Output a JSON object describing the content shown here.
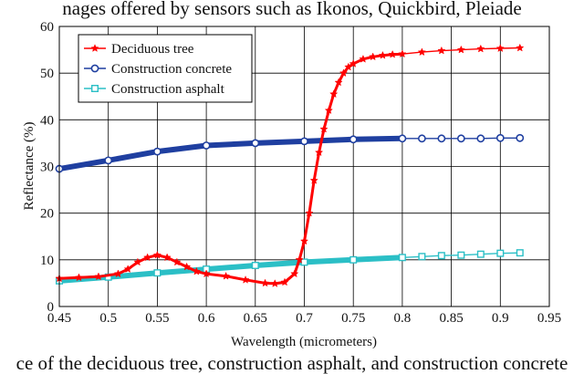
{
  "caption_top": "nages offered by sensors such as Ikonos, Quickbird, Pleiade",
  "caption_bottom": "ce of the deciduous tree, construction asphalt, and construction concrete",
  "chart_data": {
    "type": "line",
    "xlabel": "Wavelength (micrometers)",
    "ylabel": "Reflectance (%)",
    "xlim": [
      0.45,
      0.95
    ],
    "ylim": [
      0,
      60
    ],
    "xticks": [
      "0.45",
      "0.5",
      "0.55",
      "0.6",
      "0.65",
      "0.7",
      "0.75",
      "0.8",
      "0.85",
      "0.9",
      "0.95"
    ],
    "yticks": [
      "0",
      "10",
      "20",
      "30",
      "40",
      "50",
      "60"
    ],
    "grid": true,
    "legend_position": "top-left",
    "series": [
      {
        "name": "Deciduous tree",
        "color": "#ff0000",
        "marker": "star",
        "x": [
          0.45,
          0.47,
          0.49,
          0.51,
          0.52,
          0.53,
          0.54,
          0.55,
          0.56,
          0.57,
          0.58,
          0.59,
          0.6,
          0.62,
          0.64,
          0.66,
          0.67,
          0.68,
          0.69,
          0.695,
          0.7,
          0.705,
          0.71,
          0.715,
          0.72,
          0.725,
          0.73,
          0.735,
          0.74,
          0.745,
          0.75,
          0.76,
          0.77,
          0.78,
          0.79,
          0.8,
          0.82,
          0.84,
          0.86,
          0.88,
          0.9,
          0.92
        ],
        "y": [
          6.0,
          6.2,
          6.4,
          7.0,
          8.0,
          9.5,
          10.5,
          11.0,
          10.5,
          9.5,
          8.5,
          7.5,
          7.0,
          6.5,
          5.7,
          5.0,
          4.9,
          5.2,
          7.0,
          10.0,
          14.0,
          20.0,
          27.0,
          33.0,
          38.0,
          42.0,
          45.5,
          48.0,
          50.0,
          51.3,
          52.0,
          53.0,
          53.5,
          53.8,
          54.0,
          54.1,
          54.5,
          54.8,
          55.0,
          55.2,
          55.3,
          55.4
        ]
      },
      {
        "name": "Construction concrete",
        "color": "#1f3fa0",
        "marker": "circle",
        "x": [
          0.45,
          0.5,
          0.55,
          0.6,
          0.65,
          0.7,
          0.75,
          0.8,
          0.82,
          0.84,
          0.86,
          0.88,
          0.9,
          0.92
        ],
        "y": [
          29.5,
          31.3,
          33.2,
          34.5,
          35.0,
          35.4,
          35.8,
          36.0,
          36.0,
          36.0,
          36.0,
          36.0,
          36.1,
          36.1
        ]
      },
      {
        "name": "Construction asphalt",
        "color": "#2bbfc6",
        "marker": "square",
        "x": [
          0.45,
          0.5,
          0.55,
          0.6,
          0.65,
          0.7,
          0.75,
          0.8,
          0.82,
          0.84,
          0.86,
          0.88,
          0.9,
          0.92
        ],
        "y": [
          5.5,
          6.3,
          7.2,
          8.0,
          8.8,
          9.5,
          10.0,
          10.5,
          10.7,
          10.9,
          11.0,
          11.2,
          11.4,
          11.5
        ]
      }
    ]
  }
}
